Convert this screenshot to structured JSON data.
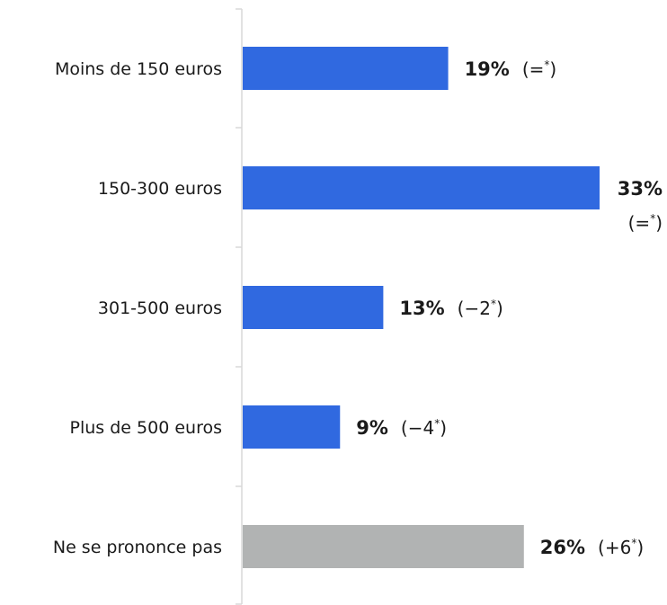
{
  "chart_data": {
    "type": "bar",
    "orientation": "horizontal",
    "categories": [
      "Moins de 150 euros",
      "150-300 euros",
      "301-500 euros",
      "Plus de 500 euros",
      "Ne se prononce pas"
    ],
    "values": [
      19,
      33,
      13,
      9,
      26
    ],
    "unit": "%",
    "value_labels": [
      "19%",
      "33%",
      "13%",
      "9%",
      "26%"
    ],
    "change_labels": [
      "(=*)",
      "(=*)",
      "(−2*)",
      "(−4*)",
      "(+6*)"
    ],
    "bar_colors": [
      "#3069e0",
      "#3069e0",
      "#3069e0",
      "#3069e0",
      "#b1b3b3"
    ],
    "xlim": [
      0,
      33
    ],
    "grid": false,
    "legend": "none"
  }
}
